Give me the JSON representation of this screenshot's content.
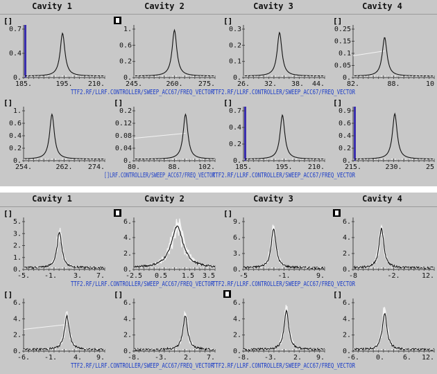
{
  "panels": [
    {
      "cavity_titles": [
        "Cavity 1",
        "Cavity 2",
        "Cavity 3",
        "Cavity 4"
      ],
      "path_labels": [
        {
          "row": 0,
          "x": 102,
          "text": "TTF2.RF/LLRF.CONTROLLER/SWEEP_ACC67/FREQ_VECTOR"
        },
        {
          "row": 0,
          "x": 306,
          "text": "TTF2.RF/LLRF.CONTROLLER/SWEEP_ACC67/FREQ_VECTOR"
        },
        {
          "row": 1,
          "x": 150,
          "text": "[]LRF.CONTROLLER/SWEEP_ACC67/FREQ_VECTOR"
        },
        {
          "row": 1,
          "x": 306,
          "text": "TTF2.RF/LLRF.CONTROLLER/SWEEP_ACC67/FREQ_VECTOR"
        }
      ]
    },
    {
      "cavity_titles": [
        "Cavity 1",
        "Cavity 2",
        "Cavity 3",
        "Cavity 4"
      ],
      "path_labels": [
        {
          "row": 0,
          "x": 102,
          "text": "TTF2.RF/LLRF.CONTROLLER/SWEEP_ACC67/FREQ_VECTOR"
        },
        {
          "row": 0,
          "x": 306,
          "text": "TTF2.RF/LLRF.CONTROLLER/SWEEP_ACC67/FREQ_VECTOR"
        },
        {
          "row": 1,
          "x": 102,
          "text": "TTF2.RF/LLRF.CONTROLLER/SWEEP_ACC67/FREQ_VECTOR"
        },
        {
          "row": 1,
          "x": 306,
          "text": "TTF2.RF/LLRF.CONTROLLER/SWEEP_ACC67/FREQ_VECTOR"
        }
      ]
    }
  ],
  "chart_data": [
    {
      "type": "line",
      "panel": 0,
      "row": 0,
      "col": 0,
      "unit_label": "[]",
      "unit_style": "bracket",
      "ylim": [
        0,
        0.7
      ],
      "yticks": [
        "0.7",
        "0.4",
        "0."
      ],
      "xticks": [
        "185.",
        "195.",
        "210."
      ],
      "xlim": [
        185,
        210
      ],
      "peak_x": 197,
      "peak_y": 0.62,
      "noise": false,
      "bar_left": true
    },
    {
      "type": "line",
      "panel": 0,
      "row": 0,
      "col": 1,
      "unit_label": "[]",
      "unit_style": "box",
      "ylim": [
        0,
        1
      ],
      "yticks": [
        "1.",
        "0.6",
        "0.2",
        "0."
      ],
      "xticks": [
        "245.",
        "260.",
        "275."
      ],
      "xlim": [
        245,
        275
      ],
      "peak_x": 260,
      "peak_y": 0.95,
      "noise": false
    },
    {
      "type": "line",
      "panel": 0,
      "row": 0,
      "col": 2,
      "unit_label": "[]",
      "unit_style": "bracket",
      "ylim": [
        0,
        0.3
      ],
      "yticks": [
        "0.3",
        "0.2",
        "0.1",
        "0."
      ],
      "xticks": [
        "26.",
        "32.",
        "38.",
        "44."
      ],
      "xlim": [
        26,
        44
      ],
      "peak_x": 34,
      "peak_y": 0.27,
      "noise": false
    },
    {
      "type": "line",
      "panel": 0,
      "row": 0,
      "col": 3,
      "unit_label": "[]",
      "unit_style": "bracket",
      "ylim": [
        0,
        0.25
      ],
      "yticks": [
        "0.25",
        "0.15",
        "0.1",
        "0.05",
        "0."
      ],
      "xticks": [
        "82.",
        "88.",
        "10"
      ],
      "xlim": [
        82,
        100
      ],
      "peak_x": 89,
      "peak_y": 0.2,
      "noise": false,
      "trend": true
    },
    {
      "type": "line",
      "panel": 0,
      "row": 1,
      "col": 0,
      "unit_label": "[]",
      "unit_style": "bracket",
      "ylim": [
        0,
        1
      ],
      "yticks": [
        "1.",
        "0.6",
        "0.4",
        "0.2",
        "0."
      ],
      "xticks": [
        "254.",
        "262.",
        "274."
      ],
      "xlim": [
        254,
        274
      ],
      "peak_x": 261,
      "peak_y": 0.9,
      "noise": false
    },
    {
      "type": "line",
      "panel": 0,
      "row": 1,
      "col": 1,
      "unit_label": "[]",
      "unit_style": "bracket",
      "ylim": [
        0,
        0.2
      ],
      "yticks": [
        "0.2",
        "0.12",
        "0.08",
        "0.04",
        "0."
      ],
      "xticks": [
        "80.",
        "88.",
        "102."
      ],
      "xlim": [
        80,
        102
      ],
      "peak_x": 94,
      "peak_y": 0.18,
      "noise": false,
      "trend": true
    },
    {
      "type": "line",
      "panel": 0,
      "row": 1,
      "col": 2,
      "unit_label": "[]",
      "unit_style": "bracket",
      "ylim": [
        0,
        0.7
      ],
      "yticks": [
        "0.7",
        "0.4",
        "0.2",
        "0."
      ],
      "xticks": [
        "185.",
        "195.",
        "210."
      ],
      "xlim": [
        185,
        210
      ],
      "peak_x": 197,
      "peak_y": 0.62,
      "noise": false,
      "bar_left": true
    },
    {
      "type": "line",
      "panel": 0,
      "row": 1,
      "col": 3,
      "unit_label": "[]",
      "unit_style": "bracket",
      "ylim": [
        0,
        0.9
      ],
      "yticks": [
        "0.9",
        "0.6",
        "0.4",
        "0.2",
        "0."
      ],
      "xticks": [
        "215.",
        "230.",
        "25"
      ],
      "xlim": [
        215,
        250
      ],
      "peak_x": 233,
      "peak_y": 0.82,
      "noise": false,
      "bar_left": true
    },
    {
      "type": "line",
      "panel": 1,
      "row": 0,
      "col": 0,
      "unit_label": "[]",
      "unit_style": "bracket",
      "ylim": [
        0,
        5
      ],
      "yticks": [
        "5.",
        "3.",
        "2.",
        "1.",
        "0."
      ],
      "xticks": [
        "-5.",
        "-1.",
        "3.",
        "7."
      ],
      "xlim": [
        -5,
        7
      ],
      "peak_x": 0.3,
      "peak_y": 3.8,
      "noise": true
    },
    {
      "type": "line",
      "panel": 1,
      "row": 0,
      "col": 1,
      "unit_label": "[]",
      "unit_style": "box",
      "ylim": [
        0,
        6
      ],
      "yticks": [
        "6.",
        "4.",
        "2.",
        "0."
      ],
      "xticks": [
        "-2.5",
        "0.5",
        "1.5",
        "3.5"
      ],
      "xlim": [
        -2.5,
        3.5
      ],
      "peak_x": 0.7,
      "peak_y": 5.2,
      "noise": true,
      "wide": true
    },
    {
      "type": "line",
      "panel": 1,
      "row": 0,
      "col": 2,
      "unit_label": "[]",
      "unit_style": "bracket",
      "ylim": [
        0,
        9
      ],
      "yticks": [
        "9.",
        "6.",
        "3.",
        "0."
      ],
      "xticks": [
        "-5",
        "-1.",
        "9."
      ],
      "xlim": [
        -5,
        9
      ],
      "peak_x": 0.2,
      "peak_y": 7.5,
      "noise": true
    },
    {
      "type": "line",
      "panel": 1,
      "row": 0,
      "col": 3,
      "unit_label": "[]",
      "unit_style": "box",
      "ylim": [
        0,
        6
      ],
      "yticks": [
        "6.",
        "4.",
        "2.",
        "0."
      ],
      "xticks": [
        "-8",
        "-2.",
        "12."
      ],
      "xlim": [
        -8,
        12
      ],
      "peak_x": -1,
      "peak_y": 5,
      "noise": true
    },
    {
      "type": "line",
      "panel": 1,
      "row": 1,
      "col": 0,
      "unit_label": "[]",
      "unit_style": "bracket",
      "ylim": [
        0,
        6
      ],
      "yticks": [
        "6.",
        "4.",
        "2.",
        "0."
      ],
      "xticks": [
        "-6.",
        "-1.",
        "4.",
        "9."
      ],
      "xlim": [
        -6,
        9
      ],
      "peak_x": 2,
      "peak_y": 4.2,
      "noise": true,
      "trend": true
    },
    {
      "type": "line",
      "panel": 1,
      "row": 1,
      "col": 1,
      "unit_label": "[]",
      "unit_style": "bracket",
      "ylim": [
        0,
        6
      ],
      "yticks": [
        "6.",
        "4.",
        "2.",
        "0."
      ],
      "xticks": [
        "-8.",
        "-3.",
        "2.",
        "7."
      ],
      "xlim": [
        -8,
        7
      ],
      "peak_x": 1.5,
      "peak_y": 4.2,
      "noise": true
    },
    {
      "type": "line",
      "panel": 1,
      "row": 1,
      "col": 2,
      "unit_label": "[]",
      "unit_style": "box",
      "ylim": [
        0,
        6
      ],
      "yticks": [
        "6.",
        "4.",
        "2.",
        "0."
      ],
      "xticks": [
        "-8.",
        "-3.",
        "2.",
        "9."
      ],
      "xlim": [
        -8,
        9
      ],
      "peak_x": 1,
      "peak_y": 4.8,
      "noise": true
    },
    {
      "type": "line",
      "panel": 1,
      "row": 1,
      "col": 3,
      "unit_label": "[]",
      "unit_style": "bracket",
      "ylim": [
        0,
        6
      ],
      "yticks": [
        "6.",
        "4.",
        "2.",
        "0."
      ],
      "xticks": [
        "-6.",
        "0.",
        "6.",
        "12."
      ],
      "xlim": [
        -6,
        12
      ],
      "peak_x": 1,
      "peak_y": 4.5,
      "noise": true
    }
  ]
}
